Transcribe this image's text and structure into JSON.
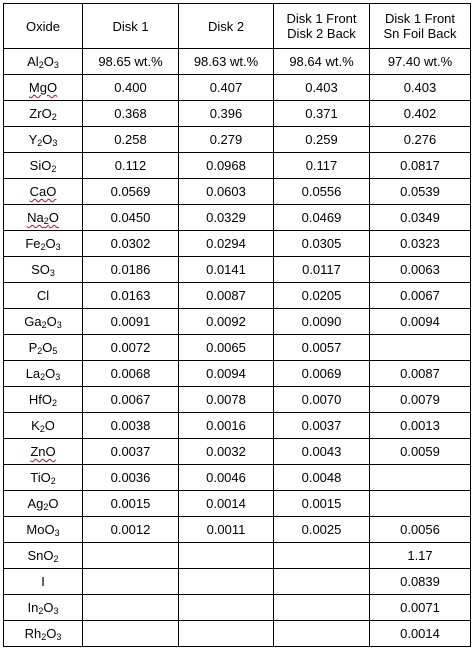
{
  "table": {
    "headers": [
      {
        "lines": [
          "Oxide"
        ]
      },
      {
        "lines": [
          "Disk 1"
        ]
      },
      {
        "lines": [
          "Disk 2"
        ]
      },
      {
        "lines": [
          "Disk 1 Front",
          "Disk 2 Back"
        ]
      },
      {
        "lines": [
          "Disk 1 Front",
          "Sn Foil Back"
        ]
      }
    ],
    "rows": [
      {
        "oxide": [
          [
            "Al",
            ""
          ],
          [
            "2",
            "sub"
          ],
          [
            "O",
            ""
          ],
          [
            "3",
            "sub"
          ]
        ],
        "spell": false,
        "values": [
          "98.65 wt.%",
          "98.63 wt.%",
          "98.64 wt.%",
          "97.40 wt.%"
        ]
      },
      {
        "oxide": [
          [
            "MgO",
            ""
          ]
        ],
        "spell": true,
        "values": [
          "0.400",
          "0.407",
          "0.403",
          "0.403"
        ]
      },
      {
        "oxide": [
          [
            "ZrO",
            ""
          ],
          [
            "2",
            "sub"
          ]
        ],
        "spell": false,
        "values": [
          "0.368",
          "0.396",
          "0.371",
          "0.402"
        ]
      },
      {
        "oxide": [
          [
            "Y",
            ""
          ],
          [
            "2",
            "sub"
          ],
          [
            "O",
            ""
          ],
          [
            "3",
            "sub"
          ]
        ],
        "spell": false,
        "values": [
          "0.258",
          "0.279",
          "0.259",
          "0.276"
        ]
      },
      {
        "oxide": [
          [
            "SiO",
            ""
          ],
          [
            "2",
            "sub"
          ]
        ],
        "spell": false,
        "values": [
          "0.112",
          "0.0968",
          "0.117",
          "0.0817"
        ]
      },
      {
        "oxide": [
          [
            "CaO",
            ""
          ]
        ],
        "spell": true,
        "values": [
          "0.0569",
          "0.0603",
          "0.0556",
          "0.0539"
        ]
      },
      {
        "oxide": [
          [
            "Na",
            ""
          ],
          [
            "2",
            "sub"
          ],
          [
            "O",
            ""
          ]
        ],
        "spell": true,
        "values": [
          "0.0450",
          "0.0329",
          "0.0469",
          "0.0349"
        ]
      },
      {
        "oxide": [
          [
            "Fe",
            ""
          ],
          [
            "2",
            "sub"
          ],
          [
            "O",
            ""
          ],
          [
            "3",
            "sub"
          ]
        ],
        "spell": false,
        "values": [
          "0.0302",
          "0.0294",
          "0.0305",
          "0.0323"
        ]
      },
      {
        "oxide": [
          [
            "SO",
            ""
          ],
          [
            "3",
            "sub"
          ]
        ],
        "spell": false,
        "values": [
          "0.0186",
          "0.0141",
          "0.0117",
          "0.0063"
        ]
      },
      {
        "oxide": [
          [
            "Cl",
            ""
          ]
        ],
        "spell": false,
        "values": [
          "0.0163",
          "0.0087",
          "0.0205",
          "0.0067"
        ]
      },
      {
        "oxide": [
          [
            "Ga",
            ""
          ],
          [
            "2",
            "sub"
          ],
          [
            "O",
            ""
          ],
          [
            "3",
            "sub"
          ]
        ],
        "spell": false,
        "values": [
          "0.0091",
          "0.0092",
          "0.0090",
          "0.0094"
        ]
      },
      {
        "oxide": [
          [
            "P",
            ""
          ],
          [
            "2",
            "sub"
          ],
          [
            "O",
            ""
          ],
          [
            "5",
            "sub"
          ]
        ],
        "spell": false,
        "values": [
          "0.0072",
          "0.0065",
          "0.0057",
          ""
        ]
      },
      {
        "oxide": [
          [
            "La",
            ""
          ],
          [
            "2",
            "sub"
          ],
          [
            "O",
            ""
          ],
          [
            "3",
            "sub"
          ]
        ],
        "spell": false,
        "values": [
          "0.0068",
          "0.0094",
          "0.0069",
          "0.0087"
        ]
      },
      {
        "oxide": [
          [
            "HfO",
            ""
          ],
          [
            "2",
            "sub"
          ]
        ],
        "spell": false,
        "values": [
          "0.0067",
          "0.0078",
          "0.0070",
          "0.0079"
        ]
      },
      {
        "oxide": [
          [
            "K",
            ""
          ],
          [
            "2",
            "sub"
          ],
          [
            "O",
            ""
          ]
        ],
        "spell": false,
        "values": [
          "0.0038",
          "0.0016",
          "0.0037",
          "0.0013"
        ]
      },
      {
        "oxide": [
          [
            "ZnO",
            ""
          ]
        ],
        "spell": true,
        "values": [
          "0.0037",
          "0.0032",
          "0.0043",
          "0.0059"
        ]
      },
      {
        "oxide": [
          [
            "TiO",
            ""
          ],
          [
            "2",
            "sub"
          ]
        ],
        "spell": false,
        "values": [
          "0.0036",
          "0.0046",
          "0.0048",
          ""
        ]
      },
      {
        "oxide": [
          [
            "Ag",
            ""
          ],
          [
            "2",
            "sub"
          ],
          [
            "O",
            ""
          ]
        ],
        "spell": false,
        "values": [
          "0.0015",
          "0.0014",
          "0.0015",
          ""
        ]
      },
      {
        "oxide": [
          [
            "MoO",
            ""
          ],
          [
            "3",
            "sub"
          ]
        ],
        "spell": false,
        "values": [
          "0.0012",
          "0.0011",
          "0.0025",
          "0.0056"
        ]
      },
      {
        "oxide": [
          [
            "SnO",
            ""
          ],
          [
            "2",
            "sub"
          ]
        ],
        "spell": false,
        "values": [
          "",
          "",
          "",
          "1.17"
        ]
      },
      {
        "oxide": [
          [
            "I",
            ""
          ]
        ],
        "spell": false,
        "values": [
          "",
          "",
          "",
          "0.0839"
        ]
      },
      {
        "oxide": [
          [
            "In",
            ""
          ],
          [
            "2",
            "sub"
          ],
          [
            "O",
            ""
          ],
          [
            "3",
            "sub"
          ]
        ],
        "spell": false,
        "values": [
          "",
          "",
          "",
          "0.0071"
        ]
      },
      {
        "oxide": [
          [
            "Rh",
            ""
          ],
          [
            "2",
            "sub"
          ],
          [
            "O",
            ""
          ],
          [
            "3",
            "sub"
          ]
        ],
        "spell": false,
        "values": [
          "",
          "",
          "",
          "0.0014"
        ]
      }
    ]
  }
}
